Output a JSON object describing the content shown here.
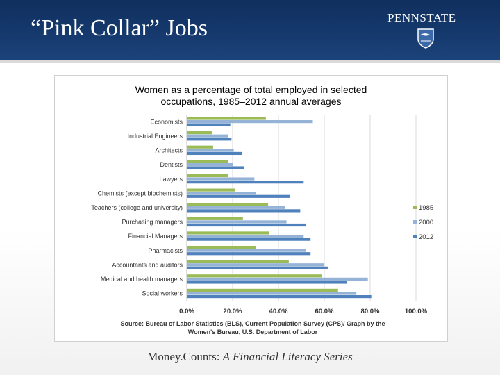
{
  "slide": {
    "title": "“Pink Collar” Jobs",
    "logo_text": "PENNSTATE",
    "footer_prefix": "Money.Counts: ",
    "footer_series": "A Financial Literacy Series"
  },
  "colors": {
    "header": "#163a6e",
    "series_1985": "#9bbb59",
    "series_2000": "#95b3d7",
    "series_2012": "#4f81bd"
  },
  "chart_data": {
    "type": "bar",
    "orientation": "horizontal",
    "title_lines": [
      "Women as a percentage of total employed in selected",
      "occupations, 1985–2012 annual averages"
    ],
    "categories": [
      "Economists",
      "Industrial Engineers",
      "Architects",
      "Dentists",
      "Lawyers",
      "Chemists (except biochemists)",
      "Teachers (college and university)",
      "Purchasing managers",
      "Financial Managers",
      "Pharmacists",
      "Accountants and auditors",
      "Medical and health managers",
      "Social workers"
    ],
    "series": [
      {
        "name": "1985",
        "color": "#9bbb59",
        "values": [
          34.5,
          11,
          11.5,
          18,
          18,
          21,
          35.5,
          24.5,
          36,
          30,
          44.5,
          59,
          66
        ]
      },
      {
        "name": "2000",
        "color": "#95b3d7",
        "values": [
          55,
          18,
          20.5,
          20,
          29.5,
          30,
          43,
          43.5,
          51,
          52,
          60,
          79,
          74
        ]
      },
      {
        "name": "2012",
        "color": "#4f81bd",
        "values": [
          19,
          19.5,
          24,
          25,
          51,
          45,
          49.5,
          52,
          54,
          54,
          61.5,
          70,
          80.5
        ]
      }
    ],
    "x_ticks": [
      "0.0%",
      "20.0%",
      "40.0%",
      "60.0%",
      "80.0%",
      "100.0%"
    ],
    "xlim": [
      0,
      100
    ],
    "grid": true,
    "legend_position": "right",
    "source_lines": [
      "Source: Bureau of Labor Statistics (BLS), Current Population Survey (CPS)/ Graph by the",
      "Women's Bureau, U.S. Department of Labor"
    ]
  }
}
